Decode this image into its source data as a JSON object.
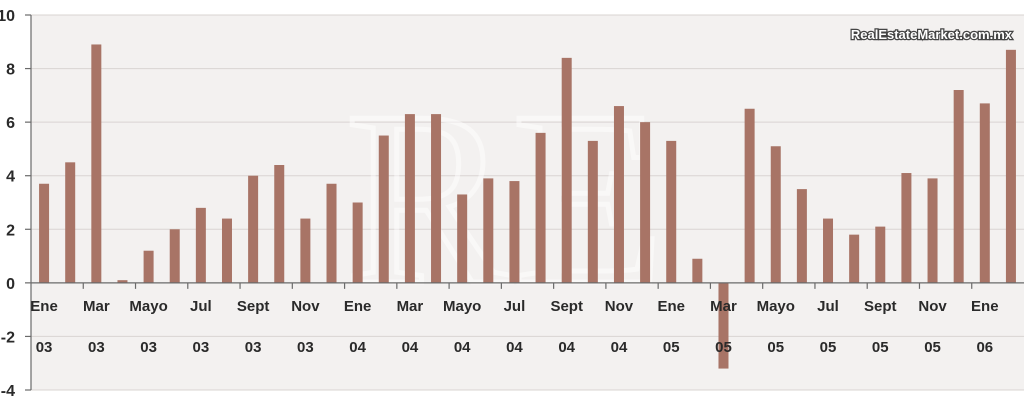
{
  "watermark": "RealEstateMarket.com.mx",
  "logo_letters": "RE",
  "colors": {
    "bar": "#a87466",
    "plot_bg": "#f3f1f0",
    "grid": "#d9d4d2",
    "axis": "#6a6a6a"
  },
  "chart_data": {
    "type": "bar",
    "title": "",
    "xlabel": "",
    "ylabel": "",
    "ylim": [
      -4,
      10
    ],
    "yticks": [
      -4,
      -2,
      0,
      2,
      4,
      6,
      8,
      10
    ],
    "grid": true,
    "values": [
      3.7,
      4.5,
      8.9,
      0.1,
      1.2,
      2.0,
      2.8,
      2.4,
      4.0,
      4.4,
      2.4,
      3.7,
      3.0,
      5.5,
      6.3,
      6.3,
      3.3,
      3.9,
      3.8,
      5.6,
      8.4,
      5.3,
      6.6,
      6.0,
      5.3,
      0.9,
      -3.2,
      6.5,
      5.1,
      3.5,
      2.4,
      1.8,
      2.1,
      4.1,
      3.9,
      7.2,
      6.7,
      8.7
    ],
    "month_labels": [
      "Ene",
      "Mar",
      "Mayo",
      "Jul",
      "Sept",
      "Nov",
      "Ene",
      "Mar",
      "Mayo",
      "Jul",
      "Sept",
      "Nov",
      "Ene",
      "Mar",
      "Mayo",
      "Jul",
      "Sept",
      "Nov",
      "Ene"
    ],
    "year_labels": [
      "03",
      "03",
      "03",
      "03",
      "03",
      "03",
      "04",
      "04",
      "04",
      "04",
      "04",
      "04",
      "05",
      "05",
      "05",
      "05",
      "05",
      "05",
      "06"
    ]
  }
}
